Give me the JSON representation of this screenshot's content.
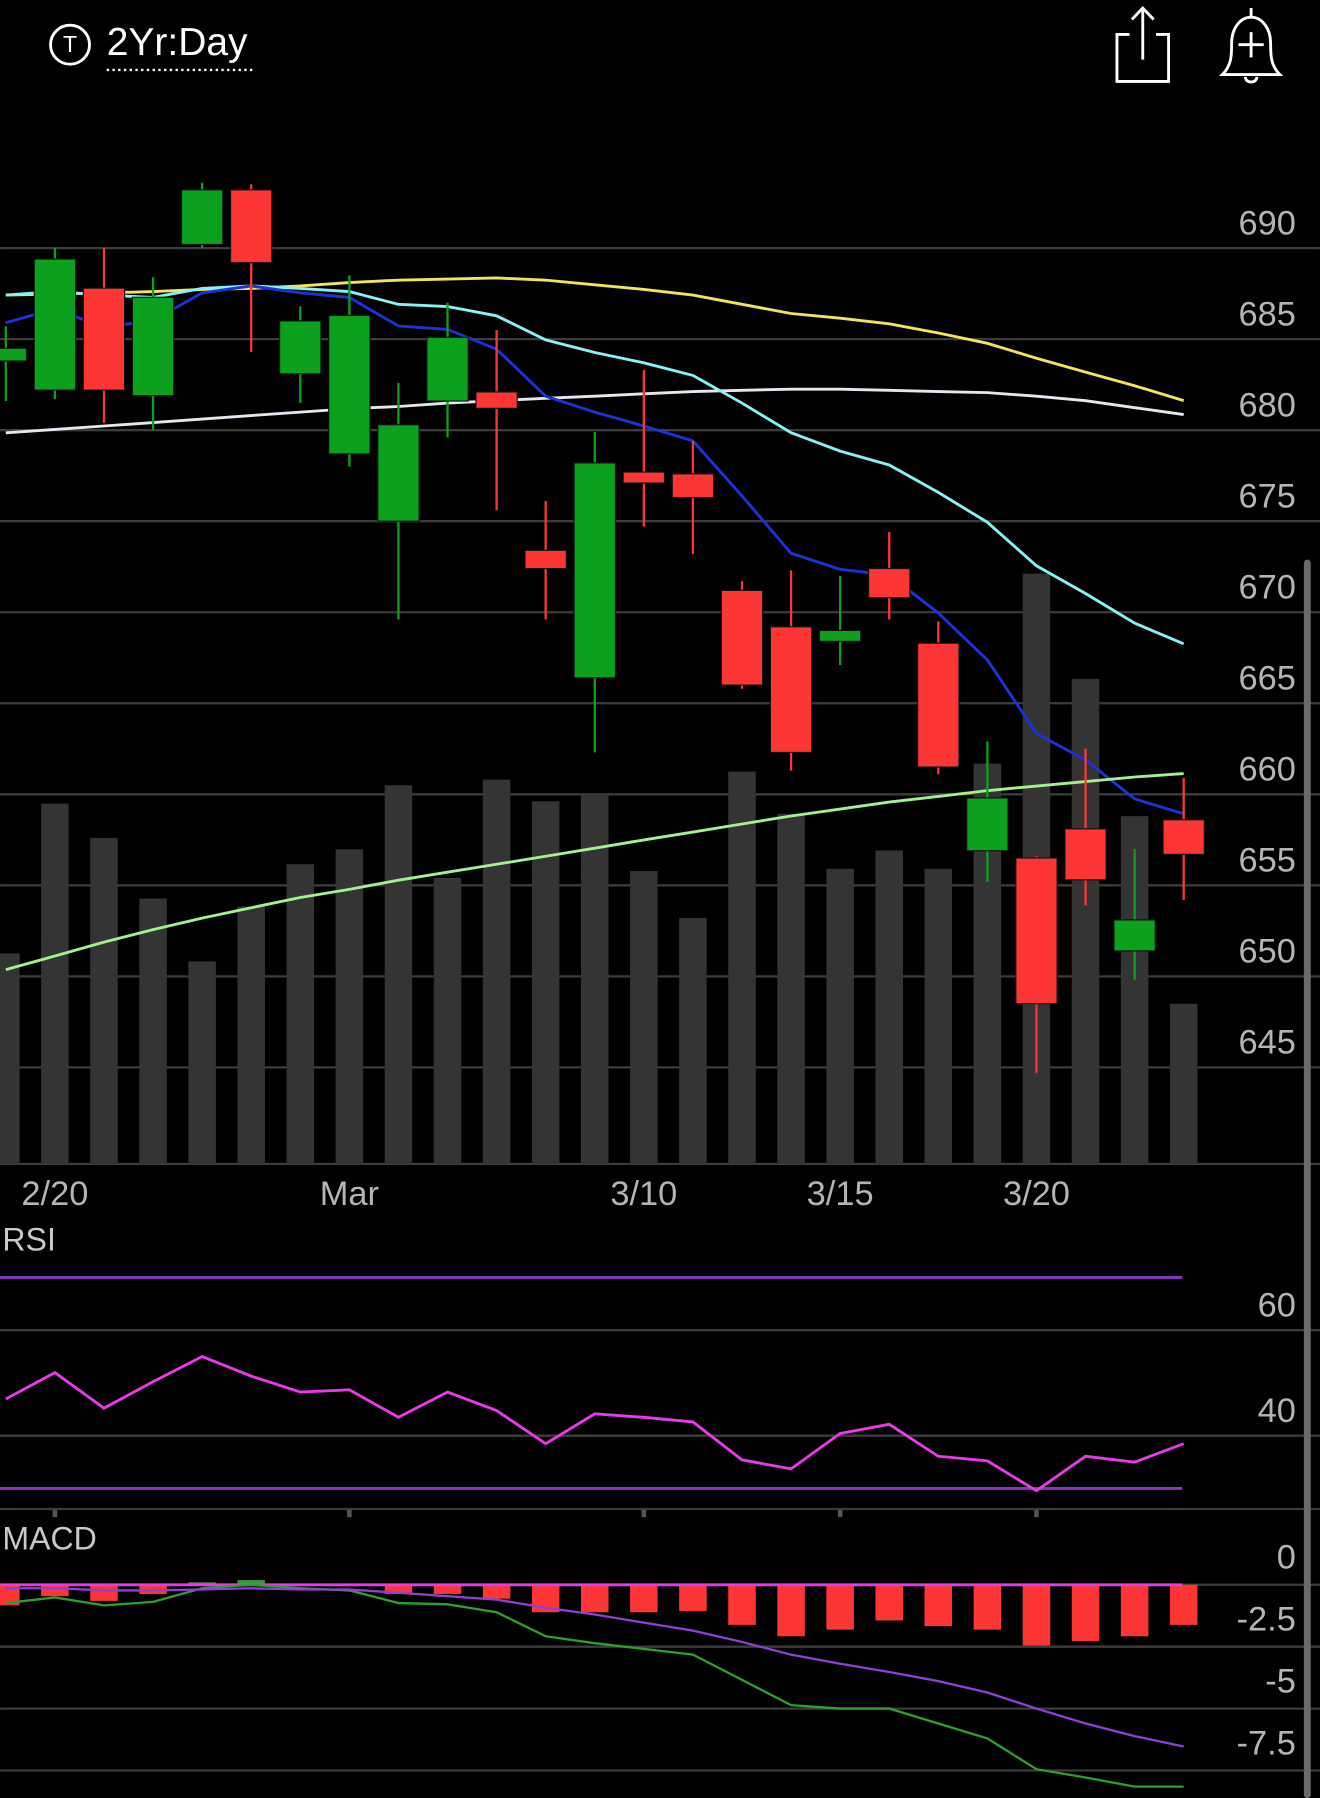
{
  "header": {
    "icon": "T",
    "title": "2Yr:Day"
  },
  "chart_data": [
    {
      "type": "candlestick",
      "categories": [
        null,
        "2/20",
        null,
        null,
        null,
        null,
        null,
        "Mar",
        null,
        null,
        null,
        null,
        null,
        "3/10",
        null,
        null,
        null,
        "3/15",
        null,
        null,
        null,
        "3/20",
        null,
        null,
        null
      ],
      "open": [
        683.8,
        682.2,
        687.8,
        681.9,
        690.2,
        693.2,
        683.1,
        678.7,
        675.0,
        681.6,
        682.1,
        673.4,
        666.4,
        677.7,
        677.6,
        671.2,
        669.2,
        668.4,
        672.4,
        668.3,
        656.9,
        656.5,
        658.1,
        651.4,
        658.6
      ],
      "high": [
        685.7,
        690.0,
        690.0,
        688.4,
        693.6,
        693.5,
        686.8,
        688.5,
        682.6,
        687.0,
        685.5,
        676.1,
        679.9,
        683.3,
        679.4,
        671.7,
        672.3,
        672.0,
        674.4,
        669.5,
        662.9,
        656.6,
        662.5,
        657.0,
        660.9
      ],
      "low": [
        681.6,
        681.7,
        680.4,
        680.0,
        690.0,
        684.3,
        681.5,
        678.0,
        669.6,
        679.6,
        675.6,
        669.6,
        662.3,
        674.7,
        673.2,
        665.8,
        661.3,
        667.1,
        669.6,
        661.1,
        655.2,
        644.7,
        653.9,
        649.8,
        654.2
      ],
      "close": [
        684.5,
        689.4,
        682.2,
        687.3,
        693.2,
        689.2,
        686.0,
        686.3,
        680.3,
        685.1,
        681.2,
        672.4,
        678.2,
        677.1,
        676.3,
        666.0,
        662.3,
        669.0,
        670.8,
        661.5,
        659.8,
        648.5,
        655.3,
        653.1,
        656.7
      ],
      "up_color": "#0ba11e",
      "down_color": "#fc3535",
      "ylim": [
        639.7,
        696.7
      ],
      "yticks": [
        690,
        685,
        680,
        675,
        670,
        665,
        660,
        655,
        650,
        645
      ],
      "grid": true,
      "volume": {
        "values": [
          184,
          315,
          285,
          232,
          177,
          225,
          262,
          275,
          331,
          250,
          336,
          317,
          323,
          256,
          215,
          343,
          306,
          258,
          274,
          258,
          350,
          516,
          424,
          304,
          140
        ],
        "ylim": [
          0,
          800
        ],
        "color": "#343434"
      },
      "series": [
        {
          "color": "#f2e35c",
          "values": [
            687.42,
            687.48,
            687.54,
            687.61,
            687.73,
            687.79,
            687.92,
            688.11,
            688.24,
            688.3,
            688.36,
            688.24,
            687.98,
            687.73,
            687.42,
            686.91,
            686.41,
            686.15,
            685.84,
            685.34,
            684.77,
            683.95,
            683.19,
            682.44,
            681.62
          ]
        },
        {
          "color": "#e6e6f0",
          "values": [
            679.86,
            680.04,
            680.23,
            680.42,
            680.61,
            680.8,
            680.99,
            681.18,
            681.3,
            681.49,
            681.62,
            681.75,
            681.87,
            682.0,
            682.12,
            682.19,
            682.25,
            682.25,
            682.19,
            682.12,
            682.06,
            681.87,
            681.62,
            681.24,
            680.86
          ]
        },
        {
          "color": "#86f2f2",
          "values": [
            687.42,
            687.61,
            687.42,
            687.29,
            687.79,
            687.92,
            687.79,
            687.61,
            686.91,
            686.79,
            686.28,
            684.96,
            684.27,
            683.7,
            683.01,
            681.49,
            679.86,
            678.85,
            678.09,
            676.58,
            674.94,
            672.55,
            671.03,
            669.4,
            668.26
          ]
        },
        {
          "color": "#1c32d8",
          "values": [
            685.9,
            686.66,
            685.65,
            686.03,
            687.54,
            687.92,
            687.54,
            687.29,
            685.72,
            685.53,
            684.45,
            681.87,
            680.99,
            680.23,
            679.41,
            676.39,
            673.24,
            672.36,
            672.04,
            669.96,
            667.38,
            663.34,
            661.89,
            659.75,
            658.93
          ]
        },
        {
          "color": "#a3f08e",
          "values": [
            650.37,
            651.12,
            651.88,
            652.57,
            653.2,
            653.77,
            654.33,
            654.78,
            655.28,
            655.72,
            656.16,
            656.6,
            657.04,
            657.49,
            657.93,
            658.37,
            658.81,
            659.19,
            659.57,
            659.88,
            660.2,
            660.45,
            660.7,
            660.95,
            661.14
          ]
        }
      ]
    },
    {
      "type": "line",
      "title": "RSI",
      "series": [
        {
          "color": "#e83ae8",
          "values": [
            46.96,
            51.96,
            45.22,
            50.22,
            55.0,
            51.3,
            48.26,
            48.7,
            43.48,
            48.26,
            44.78,
            38.48,
            44.13,
            43.48,
            42.61,
            35.43,
            33.7,
            40.43,
            42.17,
            36.09,
            35.22,
            29.57,
            36.09,
            35.0,
            38.48
          ]
        }
      ],
      "levels": [
        70,
        30
      ],
      "level_color": "#8d30cc",
      "ylim": [
        26.1,
        80
      ],
      "yticks": [
        60,
        40
      ],
      "grid": true
    },
    {
      "type": "macd",
      "title": "MACD",
      "histogram": {
        "values": [
          -0.83,
          -0.46,
          -0.65,
          -0.37,
          0.1,
          0.19,
          -0.05,
          -0.05,
          -0.37,
          -0.37,
          -0.56,
          -1.11,
          -1.11,
          -1.11,
          -1.06,
          -1.62,
          -2.08,
          -1.81,
          -1.44,
          -1.67,
          -1.81,
          -2.45,
          -2.27,
          -2.08,
          -1.62
        ],
        "up_color": "#3f8f3f",
        "down_color": "#fc3535"
      },
      "series": [
        {
          "color": "#2f9e2f",
          "values": [
            -0.74,
            -0.51,
            -0.83,
            -0.69,
            -0.14,
            0,
            -0.14,
            -0.23,
            -0.74,
            -0.79,
            -1.11,
            -2.08,
            -2.36,
            -2.59,
            -2.82,
            -3.84,
            -4.86,
            -5.0,
            -5.0,
            -5.6,
            -6.2,
            -7.45,
            -7.78,
            -8.15,
            -8.15
          ]
        },
        {
          "color": "#8b40d8",
          "values": [
            -0.14,
            -0.14,
            -0.23,
            -0.23,
            -0.19,
            -0.14,
            -0.19,
            -0.19,
            -0.32,
            -0.46,
            -0.6,
            -0.93,
            -1.2,
            -1.53,
            -1.85,
            -2.31,
            -2.82,
            -3.19,
            -3.52,
            -3.89,
            -4.35,
            -5.0,
            -5.6,
            -6.11,
            -6.53
          ]
        }
      ],
      "zero_color": "#e83ae8",
      "ylim": [
        -8.61,
        2.41
      ],
      "yticks": [
        0,
        -2.5,
        -5,
        -7.5
      ],
      "grid": true
    }
  ]
}
